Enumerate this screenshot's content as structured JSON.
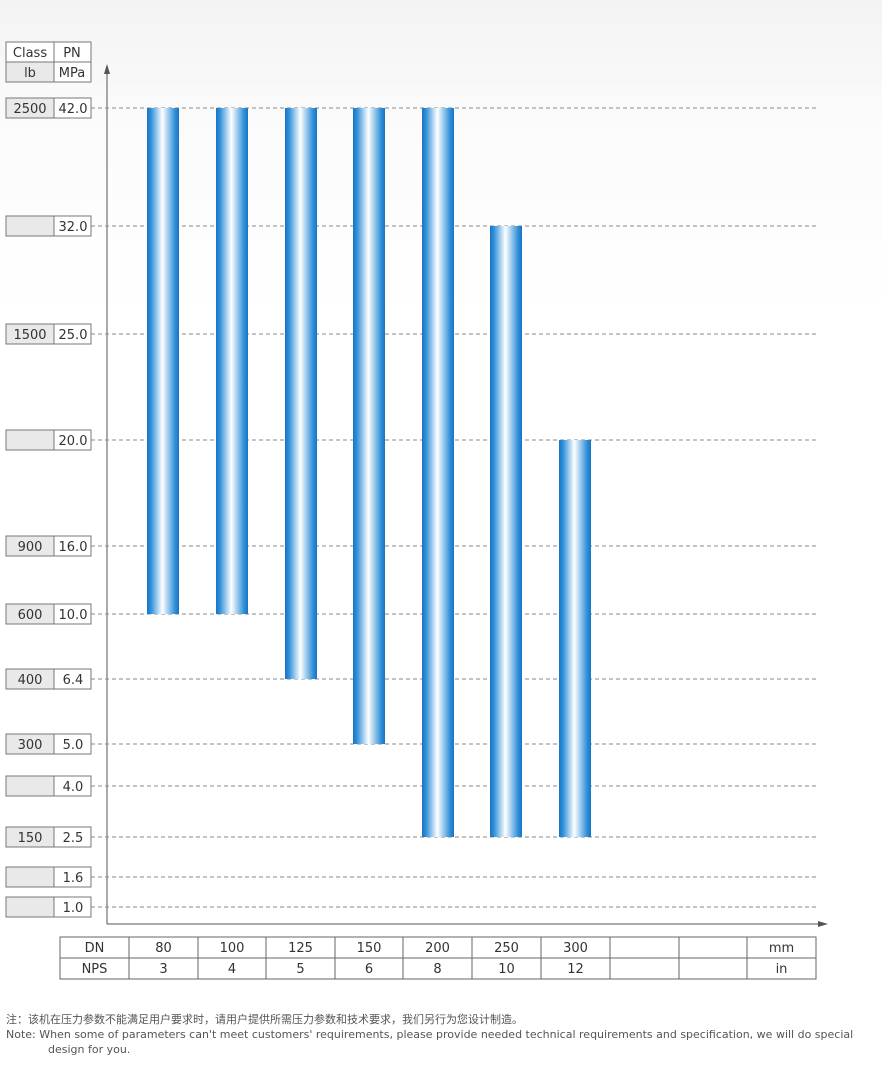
{
  "header": {
    "class_label": "Class",
    "pn_label": "PN",
    "lb_unit": "lb",
    "mpa_unit": "MPa"
  },
  "chart_data": {
    "type": "bar",
    "orientation": "vertical-floating-range",
    "y_scale": "categorical",
    "y_levels": [
      {
        "mpa": "42.0",
        "class": "2500"
      },
      {
        "mpa": "32.0",
        "class": ""
      },
      {
        "mpa": "25.0",
        "class": "1500"
      },
      {
        "mpa": "20.0",
        "class": ""
      },
      {
        "mpa": "16.0",
        "class": "900"
      },
      {
        "mpa": "10.0",
        "class": "600"
      },
      {
        "mpa": "6.4",
        "class": "400"
      },
      {
        "mpa": "5.0",
        "class": "300"
      },
      {
        "mpa": "4.0",
        "class": ""
      },
      {
        "mpa": "2.5",
        "class": "150"
      },
      {
        "mpa": "1.6",
        "class": ""
      },
      {
        "mpa": "1.0",
        "class": ""
      }
    ],
    "x_table": {
      "dn_label": "DN",
      "nps_label": "NPS",
      "dn_unit": "mm",
      "nps_unit": "in",
      "dn": [
        "80",
        "100",
        "125",
        "150",
        "200",
        "250",
        "300",
        "",
        ""
      ],
      "nps": [
        "3",
        "4",
        "5",
        "6",
        "8",
        "10",
        "12",
        "",
        ""
      ]
    },
    "bars": [
      {
        "dn": "80",
        "low": 10.0,
        "high": 42.0
      },
      {
        "dn": "100",
        "low": 10.0,
        "high": 42.0
      },
      {
        "dn": "125",
        "low": 6.4,
        "high": 42.0
      },
      {
        "dn": "150",
        "low": 5.0,
        "high": 42.0
      },
      {
        "dn": "200",
        "low": 2.5,
        "high": 42.0
      },
      {
        "dn": "250",
        "low": 2.5,
        "high": 32.0
      },
      {
        "dn": "300",
        "low": 2.5,
        "high": 20.0
      }
    ],
    "grid": "dashed-horizontal",
    "colors": {
      "bar_edge": "#1a73c4",
      "bar_mid": "#ffffff",
      "grid": "#888888"
    }
  },
  "notes": {
    "zh": "注：该机在压力参数不能满足用户要求时，请用户提供所需压力参数和技术要求，我们另行为您设计制造。",
    "en": "Note: When some of parameters can't meet customers' requirements, please provide needed technical requirements and specification, we will do special design for you."
  }
}
